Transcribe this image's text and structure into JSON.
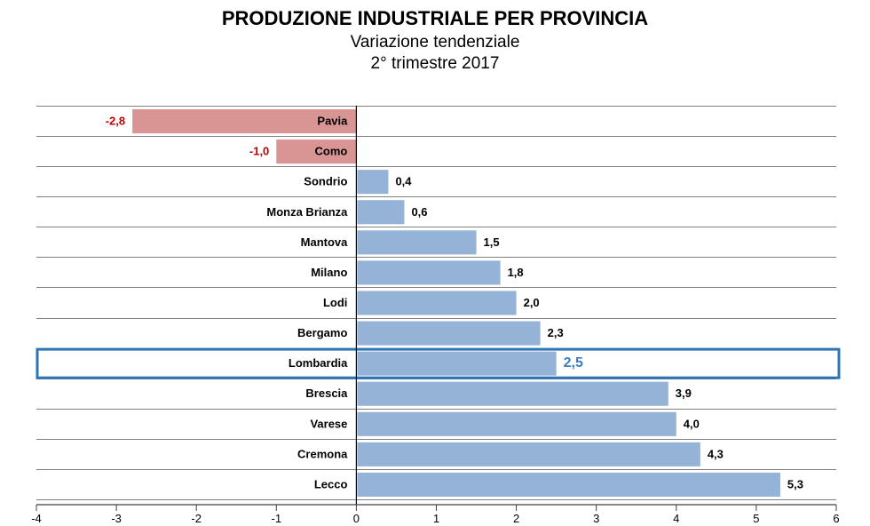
{
  "header": {
    "title": "PRODUZIONE INDUSTRIALE PER PROVINCIA",
    "subtitle": "Variazione tendenziale",
    "period": "2° trimestre 2017"
  },
  "colors": {
    "positive_bar": "#95b3d7",
    "negative_bar": "#d99594",
    "negative_label": "#c00000",
    "highlight": "#2e75b6",
    "highlight_label": "#3c7ec2",
    "grid": "#808080",
    "axis": "#000000"
  },
  "chart_data": {
    "type": "bar",
    "orientation": "horizontal",
    "title": "PRODUZIONE INDUSTRIALE PER PROVINCIA",
    "subtitle": "Variazione tendenziale - 2° trimestre 2017",
    "categories": [
      "Pavia",
      "Como",
      "Sondrio",
      "Monza Brianza",
      "Mantova",
      "Milano",
      "Lodi",
      "Bergamo",
      "Lombardia",
      "Brescia",
      "Varese",
      "Cremona",
      "Lecco"
    ],
    "values": [
      -2.8,
      -1.0,
      0.4,
      0.6,
      1.5,
      1.8,
      2.0,
      2.3,
      2.5,
      3.9,
      4.0,
      4.3,
      5.3
    ],
    "value_labels": [
      "-2,8",
      "-1,0",
      "0,4",
      "0,6",
      "1,5",
      "1,8",
      "2,0",
      "2,3",
      "2,5",
      "3,9",
      "4,0",
      "4,3",
      "5,3"
    ],
    "highlighted_category": "Lombardia",
    "xlim": [
      -4,
      6
    ],
    "xticks": [
      -4,
      -3,
      -2,
      -1,
      0,
      1,
      2,
      3,
      4,
      5,
      6
    ],
    "xtick_labels": [
      "-4",
      "-3",
      "-2",
      "-1",
      "0",
      "1",
      "2",
      "3",
      "4",
      "5",
      "6"
    ],
    "xlabel": "",
    "ylabel": "",
    "grid": "horizontal row separators",
    "legend": "none"
  }
}
